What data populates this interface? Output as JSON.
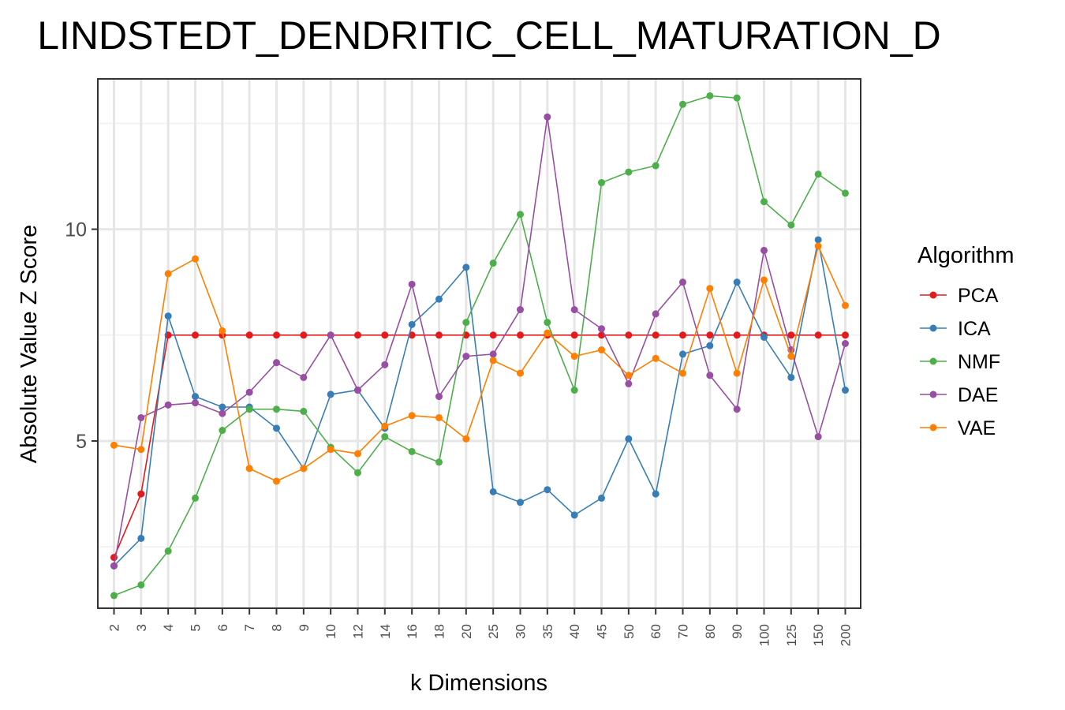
{
  "chart_data": {
    "type": "line",
    "title": "LINDSTEDT_DENDRITIC_CELL_MATURATION_D",
    "xlabel": "k Dimensions",
    "ylabel": "Absolute Value Z Score",
    "categories": [
      "2",
      "3",
      "4",
      "5",
      "6",
      "7",
      "8",
      "9",
      "10",
      "12",
      "14",
      "16",
      "18",
      "20",
      "25",
      "30",
      "35",
      "40",
      "45",
      "50",
      "60",
      "70",
      "80",
      "90",
      "100",
      "125",
      "150",
      "200"
    ],
    "y_ticks": [
      5,
      10
    ],
    "ylim": [
      1.05,
      13.55
    ],
    "grid": true,
    "legend": {
      "title": "Algorithm",
      "position": "right"
    },
    "series": [
      {
        "name": "PCA",
        "color": "#E41A1C",
        "values": [
          2.25,
          3.75,
          7.5,
          7.5,
          7.5,
          7.5,
          7.5,
          7.5,
          7.5,
          7.5,
          7.5,
          7.5,
          7.5,
          7.5,
          7.5,
          7.5,
          7.5,
          7.5,
          7.5,
          7.5,
          7.5,
          7.5,
          7.5,
          7.5,
          7.5,
          7.5,
          7.5,
          7.5
        ]
      },
      {
        "name": "ICA",
        "color": "#377EB8",
        "values": [
          2.05,
          2.7,
          7.95,
          6.05,
          5.8,
          5.8,
          5.3,
          4.35,
          6.1,
          6.2,
          5.3,
          7.75,
          8.35,
          9.1,
          3.8,
          3.55,
          3.85,
          3.25,
          3.65,
          5.05,
          3.75,
          7.05,
          7.25,
          8.75,
          7.45,
          6.5,
          9.75,
          6.2
        ]
      },
      {
        "name": "NMF",
        "color": "#4DAF4A",
        "values": [
          1.35,
          1.6,
          2.4,
          3.65,
          5.25,
          5.75,
          5.75,
          5.7,
          4.85,
          4.25,
          5.1,
          4.75,
          4.5,
          7.8,
          9.2,
          10.35,
          7.8,
          6.2,
          11.1,
          11.35,
          11.5,
          12.95,
          13.15,
          13.1,
          10.65,
          10.1,
          11.3,
          10.85
        ]
      },
      {
        "name": "DAE",
        "color": "#984EA3",
        "values": [
          2.05,
          5.55,
          5.85,
          5.9,
          5.65,
          6.15,
          6.85,
          6.5,
          7.5,
          6.2,
          6.8,
          8.7,
          6.05,
          7.0,
          7.05,
          8.1,
          12.65,
          8.1,
          7.65,
          6.35,
          8.0,
          8.75,
          6.55,
          5.75,
          9.5,
          7.15,
          5.1,
          7.3
        ]
      },
      {
        "name": "VAE",
        "color": "#FF7F00",
        "values": [
          4.9,
          4.8,
          8.95,
          9.3,
          7.6,
          4.35,
          4.05,
          4.35,
          4.8,
          4.7,
          5.35,
          5.6,
          5.55,
          5.05,
          6.9,
          6.6,
          7.55,
          7.0,
          7.15,
          6.55,
          6.95,
          6.6,
          8.6,
          6.6,
          8.8,
          7.0,
          9.6,
          8.2
        ]
      }
    ]
  }
}
